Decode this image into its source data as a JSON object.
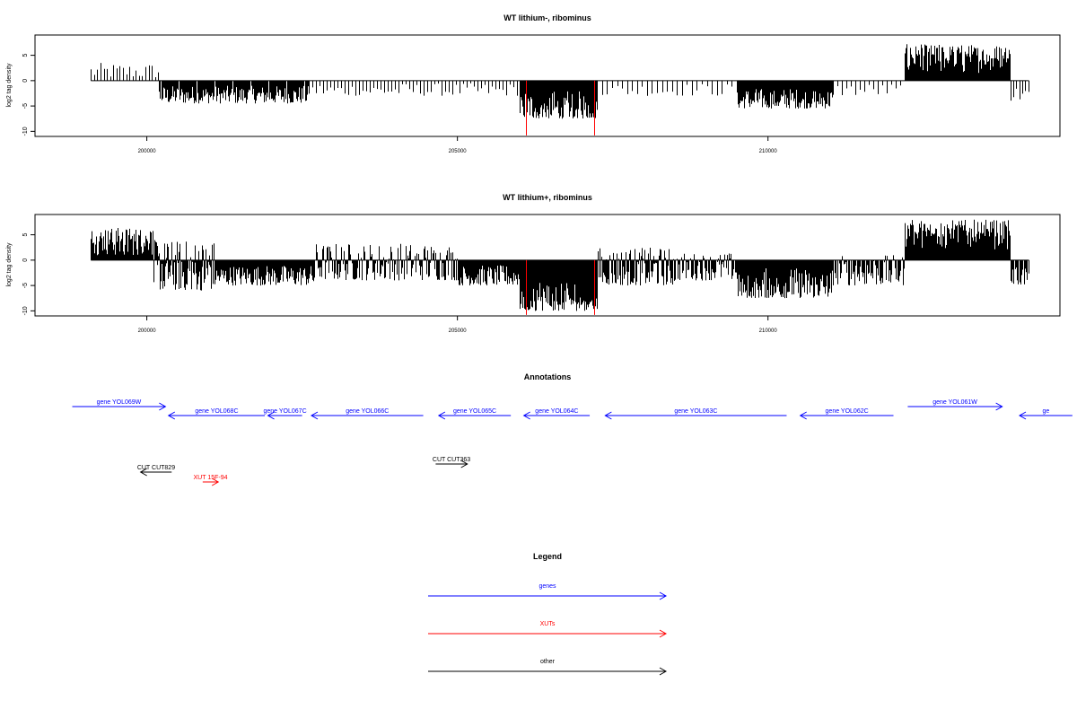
{
  "chart_data": [
    {
      "type": "bar",
      "title": "WT lithium-, ribominus",
      "ylabel": "log2 tag density",
      "xlabel": "",
      "xlim": [
        198200,
        214700
      ],
      "ylim": [
        -11,
        9
      ],
      "yticks": [
        -10,
        -5,
        0,
        5
      ],
      "xticks": [
        200000,
        205000,
        210000
      ],
      "xtick_labels": [
        "200000",
        "205000",
        "210000"
      ],
      "bar_color": "#000000",
      "highlight_color": "#ff0000",
      "highlight_bars": [
        {
          "x": 206100,
          "y": -10.8
        },
        {
          "x": 207200,
          "y": -10.8
        }
      ],
      "segments": [
        {
          "start": 199100,
          "end": 200200,
          "density": 0.28,
          "min": 0.5,
          "max": 3.5
        },
        {
          "start": 200200,
          "end": 202600,
          "density": 0.95,
          "min": -4.5,
          "max": -1
        },
        {
          "start": 202600,
          "end": 206000,
          "density": 0.25,
          "min": -3,
          "max": -0.5
        },
        {
          "start": 206000,
          "end": 207250,
          "density": 1.6,
          "min": -7.5,
          "max": -2
        },
        {
          "start": 207250,
          "end": 209500,
          "density": 0.18,
          "min": -3,
          "max": -0.5
        },
        {
          "start": 209500,
          "end": 211050,
          "density": 1.2,
          "min": -5.5,
          "max": -1.5
        },
        {
          "start": 211050,
          "end": 212200,
          "density": 0.2,
          "min": -3,
          "max": -0.5
        },
        {
          "start": 212200,
          "end": 213900,
          "density": 1.8,
          "min": 1.5,
          "max": 7.2
        },
        {
          "start": 213900,
          "end": 214200,
          "density": 0.3,
          "min": -4,
          "max": -1
        }
      ]
    },
    {
      "type": "bar",
      "title": "WT lithium+, ribominus",
      "ylabel": "log2 tag density",
      "xlabel": "",
      "xlim": [
        198200,
        214700
      ],
      "ylim": [
        -11,
        9
      ],
      "yticks": [
        -10,
        -5,
        0,
        5
      ],
      "xticks": [
        200000,
        205000,
        210000
      ],
      "xtick_labels": [
        "200000",
        "205000",
        "210000"
      ],
      "bar_color": "#000000",
      "highlight_color": "#ff0000",
      "highlight_bars": [
        {
          "x": 206100,
          "y": -10.8
        },
        {
          "x": 207200,
          "y": -10.8
        }
      ],
      "segments": [
        {
          "start": 199100,
          "end": 200100,
          "density": 1.8,
          "min": 1,
          "max": 6.5
        },
        {
          "start": 200100,
          "end": 201100,
          "density": 1.5,
          "min": -6,
          "max": 4
        },
        {
          "start": 201100,
          "end": 202700,
          "density": 1.0,
          "min": -5,
          "max": -1
        },
        {
          "start": 202700,
          "end": 205000,
          "density": 0.9,
          "min": -4,
          "max": 3.5
        },
        {
          "start": 205000,
          "end": 206000,
          "density": 1.1,
          "min": -5,
          "max": -1
        },
        {
          "start": 206000,
          "end": 207250,
          "density": 2.2,
          "min": -10,
          "max": -3
        },
        {
          "start": 207250,
          "end": 208500,
          "density": 1.3,
          "min": -5,
          "max": 2.5
        },
        {
          "start": 208500,
          "end": 209500,
          "density": 0.9,
          "min": -4,
          "max": 1.5
        },
        {
          "start": 209500,
          "end": 211050,
          "density": 1.5,
          "min": -7.5,
          "max": -1.5
        },
        {
          "start": 211050,
          "end": 212200,
          "density": 0.8,
          "min": -5,
          "max": 1
        },
        {
          "start": 212200,
          "end": 213900,
          "density": 2.0,
          "min": 2,
          "max": 8
        },
        {
          "start": 213900,
          "end": 214200,
          "density": 0.8,
          "min": -5,
          "max": -1
        }
      ]
    }
  ],
  "annotations": {
    "title": "Annotations",
    "genes": [
      {
        "label": "gene YOL069W",
        "start": 198800,
        "end": 200300,
        "dir": "right",
        "row": 1
      },
      {
        "label": "gene YOL068C",
        "start": 200350,
        "end": 201900,
        "dir": "left",
        "row": 2
      },
      {
        "label": "gene YOL067C",
        "start": 201950,
        "end": 202500,
        "dir": "left",
        "row": 2
      },
      {
        "label": "gene YOL066C",
        "start": 202650,
        "end": 204450,
        "dir": "left",
        "row": 2
      },
      {
        "label": "gene YOL065C",
        "start": 204700,
        "end": 205860,
        "dir": "left",
        "row": 2
      },
      {
        "label": "gene YOL064C",
        "start": 206070,
        "end": 207130,
        "dir": "left",
        "row": 2
      },
      {
        "label": "gene YOL063C",
        "start": 207380,
        "end": 210300,
        "dir": "left",
        "row": 2
      },
      {
        "label": "gene YOL062C",
        "start": 210520,
        "end": 212020,
        "dir": "left",
        "row": 2
      },
      {
        "label": "gene YOL061W",
        "start": 212250,
        "end": 213770,
        "dir": "right",
        "row": 1
      },
      {
        "label": "ge",
        "start": 214050,
        "end": 214900,
        "dir": "left",
        "row": 2
      }
    ],
    "other": [
      {
        "label": "CUT CUT829",
        "start": 199900,
        "end": 200400,
        "dir": "left"
      },
      {
        "label": "CUT CUT363",
        "start": 204650,
        "end": 205160,
        "dir": "right"
      }
    ],
    "xuts": [
      {
        "label": "XUT 15F-94",
        "start": 200900,
        "end": 201150,
        "dir": "right"
      }
    ]
  },
  "legend": {
    "title": "Legend",
    "items": [
      {
        "label": "genes",
        "color": "#0000ff"
      },
      {
        "label": "XUTs",
        "color": "#ff0000"
      },
      {
        "label": "other",
        "color": "#000000"
      }
    ]
  },
  "colors": {
    "gene": "#0000ff",
    "xut": "#ff0000",
    "other": "#000000"
  }
}
